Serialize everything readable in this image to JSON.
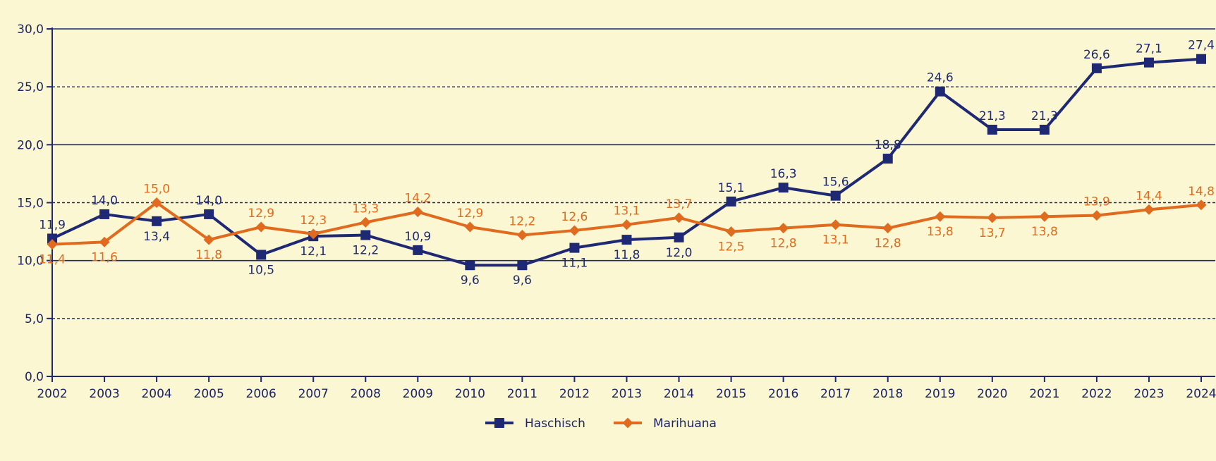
{
  "chart_data": {
    "type": "line",
    "categories": [
      "2002",
      "2003",
      "2004",
      "2005",
      "2006",
      "2007",
      "2008",
      "2009",
      "2010",
      "2011",
      "2012",
      "2013",
      "2014",
      "2015",
      "2016",
      "2017",
      "2018",
      "2019",
      "2020",
      "2021",
      "2022",
      "2023",
      "2024"
    ],
    "series": [
      {
        "name": "Haschisch",
        "color": "#1f2873",
        "marker": "square",
        "values": [
          11.9,
          14.0,
          13.4,
          14.0,
          10.5,
          12.1,
          12.2,
          10.9,
          9.6,
          9.6,
          11.1,
          11.8,
          12.0,
          15.1,
          16.3,
          15.6,
          18.8,
          24.6,
          21.3,
          21.3,
          26.6,
          27.1,
          27.4
        ],
        "labels": [
          "11,9",
          "14,0",
          "13,4",
          "14,0",
          "10,5",
          "12,1",
          "12,2",
          "10,9",
          "9,6",
          "9,6",
          "11,1",
          "11,8",
          "12,0",
          "15,1",
          "16,3",
          "15,6",
          "18,8",
          "24,6",
          "21,3",
          "21,3",
          "26,6",
          "27,1",
          "27,4"
        ],
        "label_pos": [
          "above",
          "above",
          "below",
          "above",
          "below",
          "below",
          "below",
          "above",
          "below",
          "below",
          "below",
          "below",
          "below",
          "above",
          "above",
          "above",
          "above",
          "above",
          "above",
          "above",
          "above",
          "above",
          "above"
        ]
      },
      {
        "name": "Marihuana",
        "color": "#e06a1e",
        "marker": "diamond",
        "values": [
          11.4,
          11.6,
          15.0,
          11.8,
          12.9,
          12.3,
          13.3,
          14.2,
          12.9,
          12.2,
          12.6,
          13.1,
          13.7,
          12.5,
          12.8,
          13.1,
          12.8,
          13.8,
          13.7,
          13.8,
          13.9,
          14.4,
          14.8
        ],
        "labels": [
          "11,4",
          "11,6",
          "15,0",
          "11,8",
          "12,9",
          "12,3",
          "13,3",
          "14,2",
          "12,9",
          "12,2",
          "12,6",
          "13,1",
          "13,7",
          "12,5",
          "12,8",
          "13,1",
          "12,8",
          "13,8",
          "13,7",
          "13,8",
          "13,9",
          "14,4",
          "14,8"
        ],
        "label_pos": [
          "below",
          "below",
          "above",
          "below",
          "above",
          "above",
          "above",
          "above",
          "above",
          "above",
          "above",
          "above",
          "above",
          "below",
          "below",
          "below",
          "below",
          "below",
          "below",
          "below",
          "above",
          "above",
          "above"
        ]
      }
    ],
    "ylim": [
      0,
      30
    ],
    "y_ticks": [
      "0,0",
      "5,0",
      "10,0",
      "15,0",
      "20,0",
      "25,0",
      "30,0"
    ],
    "y_tick_values": [
      0,
      5,
      10,
      15,
      20,
      25,
      30
    ],
    "gridlines": {
      "solid": [
        10,
        20,
        30
      ],
      "dashed": [
        5,
        15,
        25
      ]
    },
    "legend_position": "bottom-center",
    "title": "",
    "xlabel": "",
    "ylabel": ""
  },
  "colors": {
    "background": "#faf7d2",
    "axis": "#1f2873",
    "text": "#1e2466"
  }
}
